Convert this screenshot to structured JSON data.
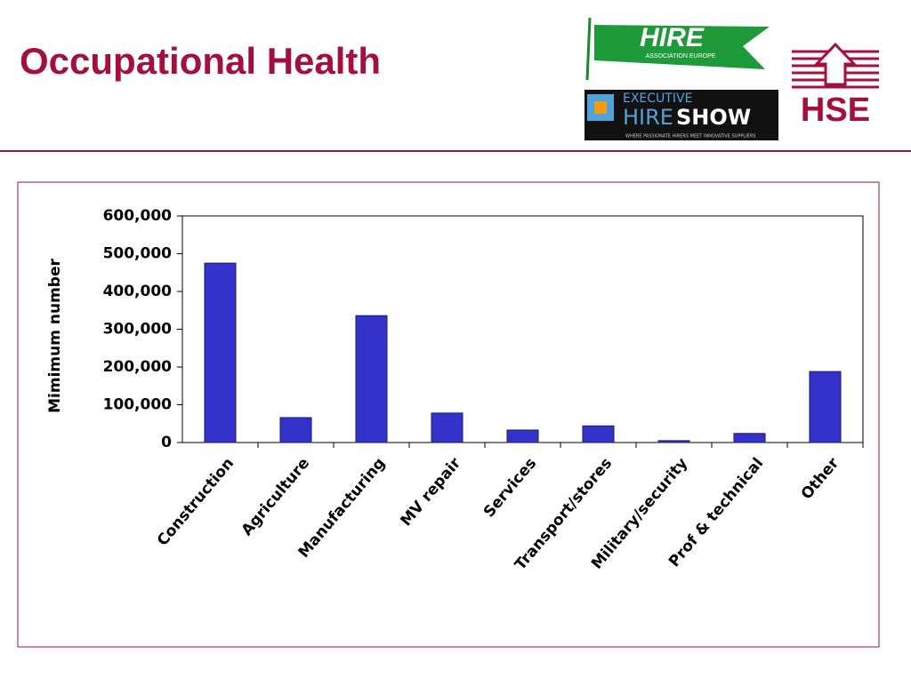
{
  "header": {
    "title": "Occupational Health"
  },
  "logos": {
    "hire": "HIRE",
    "hire_sub": "ASSOCIATION EUROPE",
    "show_top": "EXECUTIVE",
    "show_hire": "HIRE",
    "show_show": "SHOW",
    "show_tagline": "WHERE PASSIONATE HIRERS MEET INNOVATIVE SUPPLIERS",
    "hse": "HSE"
  },
  "chart_data": {
    "type": "bar",
    "y_label": "Mimimum number",
    "categories": [
      "Construction",
      "Agriculture",
      "Manufacturing",
      "MV repair",
      "Services",
      "Transport/stores",
      "Military/security",
      "Prof & technical",
      "Other"
    ],
    "values": [
      475000,
      66000,
      336000,
      78000,
      33000,
      44000,
      5000,
      24000,
      188000
    ],
    "color": "#3333cc",
    "ylim": [
      0,
      600000
    ],
    "yticks": [
      0,
      {
        "value": 100000,
        "label": "100,000"
      },
      {
        "value": 200000,
        "label": "200,000"
      },
      {
        "value": 300000,
        "label": "300,000"
      },
      {
        "value": 400000,
        "label": "400,000"
      },
      {
        "value": 500000,
        "label": "500,000"
      },
      {
        "value": 600000,
        "label": "600,000"
      }
    ],
    "grid": false
  }
}
